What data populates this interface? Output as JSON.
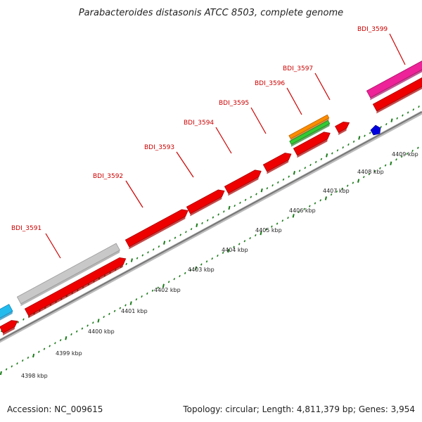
{
  "title": "Parabacteroides distasonis ATCC 8503, complete genome",
  "footer": {
    "accession": "Accession: NC_009615",
    "summary": "Topology: circular; Length: 4,811,379 bp; Genes: 3,954"
  },
  "colors": {
    "cds": "#ee0000",
    "cds_edge": "#aa0000",
    "pseudo": "#c8c8c8",
    "pink": "#ee2299",
    "orange": "#ff8c00",
    "green": "#33cc33",
    "cyan": "#22bbee",
    "blue": "#0000dd",
    "backbone": "#888888",
    "tick": "#1a7a1a",
    "label": "#cc0000"
  },
  "scale_labels": [
    "4398 kbp",
    "4399 kbp",
    "4400 kbp",
    "4401 kbp",
    "4402 kbp",
    "4403 kbp",
    "4404 kbp",
    "4405 kbp",
    "4406 kbp",
    "4407 kbp",
    "4408 kbp",
    "4409 kbp"
  ],
  "gene_labels": [
    "BDI_3591",
    "BDI_3592",
    "BDI_3593",
    "BDI_3594",
    "BDI_3595",
    "BDI_3596",
    "BDI_3597",
    "BDI_3599"
  ]
}
